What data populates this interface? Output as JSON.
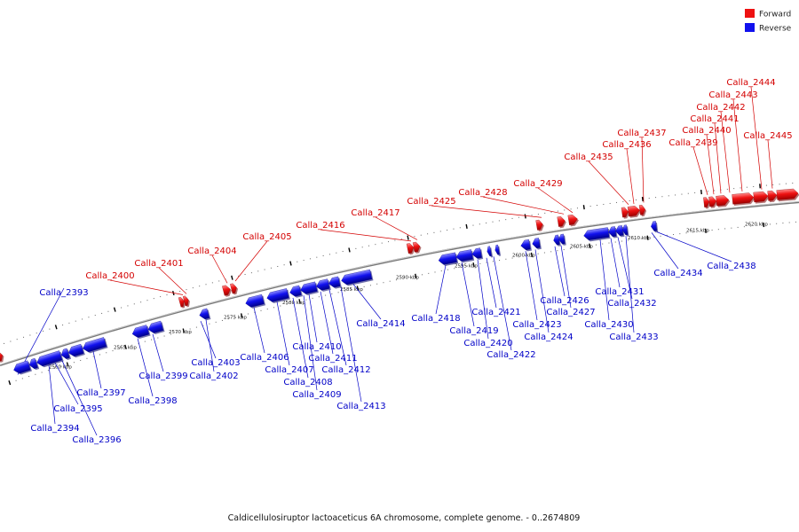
{
  "caption": "Caldicellulosiruptor lactoaceticus 6A chromosome, complete genome. - 0..2674809",
  "legend": [
    {
      "label": "Forward",
      "color": "#ee1111"
    },
    {
      "label": "Reverse",
      "color": "#1111ee"
    }
  ],
  "colors": {
    "forward": "#ee1111",
    "reverse": "#1111ee",
    "forward_label": "#d40000",
    "reverse_label": "#0000c8",
    "backbone": "#777777"
  },
  "kbp_ticks": [
    "2560 kbp",
    "2565 kbp",
    "2570 kbp",
    "2575 kbp",
    "2580 kbp",
    "2585 kbp",
    "2590 kbp",
    "2595 kbp",
    "2600 kbp",
    "2605 kbp",
    "2610 kbp",
    "2615 kbp",
    "2620 kbp"
  ],
  "forward_labels": [
    "Calla_2400",
    "Calla_2401",
    "Calla_2404",
    "Calla_2405",
    "Calla_2416",
    "Calla_2417",
    "Calla_2425",
    "Calla_2428",
    "Calla_2429",
    "Calla_2435",
    "Calla_2436",
    "Calla_2437",
    "Calla_2439",
    "Calla_2440",
    "Calla_2441",
    "Calla_2442",
    "Calla_2443",
    "Calla_2444",
    "Calla_2445"
  ],
  "reverse_labels": [
    "Calla_2393",
    "Calla_2394",
    "Calla_2395",
    "Calla_2396",
    "Calla_2397",
    "Calla_2398",
    "Calla_2399",
    "Calla_2402",
    "Calla_2403",
    "Calla_2406",
    "Calla_2407",
    "Calla_2408",
    "Calla_2409",
    "Calla_2410",
    "Calla_2411",
    "Calla_2412",
    "Calla_2413",
    "Calla_2414",
    "Calla_2418",
    "Calla_2419",
    "Calla_2420",
    "Calla_2421",
    "Calla_2422",
    "Calla_2423",
    "Calla_2424",
    "Calla_2426",
    "Calla_2427",
    "Calla_2430",
    "Calla_2431",
    "Calla_2432",
    "Calla_2433",
    "Calla_2434",
    "Calla_2438"
  ]
}
